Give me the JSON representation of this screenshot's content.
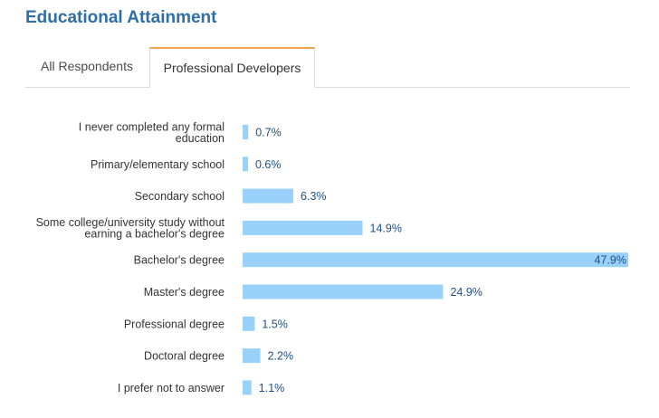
{
  "header": {
    "title": "Educational Attainment"
  },
  "tabs": [
    {
      "label": "All Respondents",
      "active": false
    },
    {
      "label": "Professional Developers",
      "active": true
    }
  ],
  "colors": {
    "title": "#2e6fa8",
    "bar": "#99d1fb",
    "value_label": "#1d4f86",
    "active_tab_accent": "#f0a24a"
  },
  "chart_data": {
    "type": "bar",
    "orientation": "horizontal",
    "categories": [
      [
        "I never completed any formal",
        "education"
      ],
      [
        "Primary/elementary school"
      ],
      [
        "Secondary school"
      ],
      [
        "Some college/university study without",
        "earning a bachelor's degree"
      ],
      [
        "Bachelor's degree"
      ],
      [
        "Master's degree"
      ],
      [
        "Professional degree"
      ],
      [
        "Doctoral degree"
      ],
      [
        "I prefer not to answer"
      ]
    ],
    "values": [
      0.7,
      0.6,
      6.3,
      14.9,
      47.9,
      24.9,
      1.5,
      2.2,
      1.1
    ],
    "value_labels": [
      "0.7%",
      "0.6%",
      "6.3%",
      "14.9%",
      "47.9%",
      "24.9%",
      "1.5%",
      "2.2%",
      "1.1%"
    ],
    "xlim": [
      0,
      47.9
    ],
    "grid": false,
    "legend": "none"
  }
}
